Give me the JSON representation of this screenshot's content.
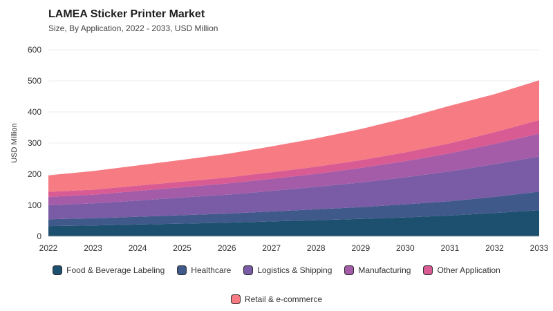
{
  "chart_data": {
    "type": "area",
    "stacked": true,
    "title": "LAMEA Sticker Printer Market",
    "subtitle": "Size, By Application, 2022 - 2033, USD Million",
    "xlabel": "",
    "ylabel": "USD Million",
    "x": [
      "2022",
      "2023",
      "2024",
      "2025",
      "2026",
      "2027",
      "2028",
      "2029",
      "2030",
      "2031",
      "2032",
      "2033"
    ],
    "ylim": [
      0,
      600
    ],
    "yticks": [
      0,
      100,
      200,
      300,
      400,
      500,
      600
    ],
    "grid": true,
    "legend": "bottom",
    "series": [
      {
        "name": "Food & Beverage Labeling",
        "color": "#1d4f6e",
        "values": [
          33,
          35,
          38,
          41,
          44,
          48,
          52,
          56,
          61,
          67,
          75,
          84
        ]
      },
      {
        "name": "Healthcare",
        "color": "#3f5a8a",
        "values": [
          22,
          23,
          25,
          27,
          29,
          32,
          35,
          38,
          42,
          46,
          52,
          60
        ]
      },
      {
        "name": "Logistics & Shipping",
        "color": "#7a5ca6",
        "values": [
          45,
          48,
          52,
          57,
          61,
          66,
          72,
          79,
          87,
          96,
          105,
          113
        ]
      },
      {
        "name": "Manufacturing",
        "color": "#a55ca8",
        "values": [
          27,
          28,
          31,
          33,
          36,
          39,
          42,
          47,
          52,
          58,
          65,
          73
        ]
      },
      {
        "name": "Other Application",
        "color": "#d95b93",
        "values": [
          16,
          16,
          17,
          18,
          19,
          21,
          23,
          25,
          28,
          32,
          38,
          44
        ]
      },
      {
        "name": "Retail & e-commerce",
        "color": "#f67b83",
        "values": [
          53,
          60,
          65,
          70,
          76,
          83,
          91,
          100,
          110,
          121,
          122,
          128
        ]
      }
    ]
  }
}
